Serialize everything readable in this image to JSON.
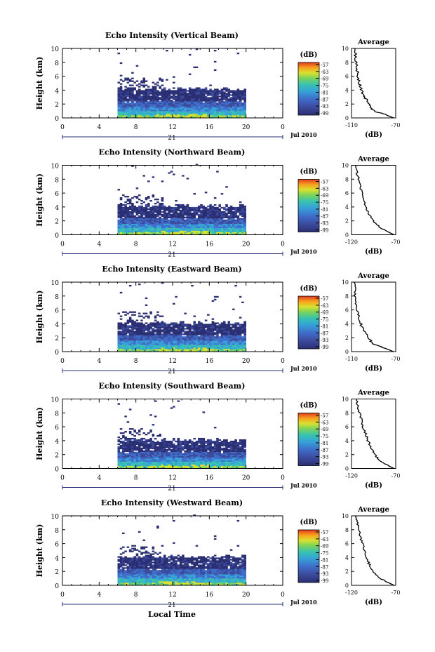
{
  "figure": {
    "x_axis_title": "Local Time",
    "panel_ylabel": "Height (km)",
    "colorbar_label": "(dB)",
    "date_label": "Jul 2010",
    "day_label": "21",
    "avg_title": "Average",
    "avg_xlabel": "(dB)"
  },
  "colors": {
    "palette": [
      "#2b2f73",
      "#3c4a9c",
      "#3f6cc8",
      "#36a0d8",
      "#38c2b0",
      "#7bd35a",
      "#d8e030",
      "#f7a21e",
      "#e23a1a"
    ],
    "line": "#000000"
  },
  "chart_data": [
    {
      "type": "heatmap",
      "title": "Echo Intensity (Vertical Beam)",
      "xlim": [
        0,
        24
      ],
      "ylim": [
        0,
        10
      ],
      "xticks": [
        "0",
        "4",
        "8",
        "12",
        "16",
        "20",
        "0"
      ],
      "yticks": [
        "0",
        "2",
        "4",
        "6",
        "8",
        "10"
      ],
      "colorbar_ticks": [
        "-57",
        "-63",
        "-69",
        "-75",
        "-81",
        "-87",
        "-93",
        "-99"
      ],
      "data_time_range": [
        6,
        20
      ],
      "avg": {
        "xlim": [
          -110,
          -70
        ],
        "xticks": [
          "-110",
          "-70"
        ],
        "yticks": [
          "0",
          "2",
          "4",
          "6",
          "8",
          "10"
        ],
        "profile": [
          [
            -72,
            0
          ],
          [
            -80,
            0.5
          ],
          [
            -90,
            1
          ],
          [
            -93,
            1.6
          ],
          [
            -95,
            2.2
          ],
          [
            -98,
            3
          ],
          [
            -100,
            3.6
          ],
          [
            -102,
            4.4
          ],
          [
            -103,
            5.2
          ],
          [
            -104,
            6
          ],
          [
            -105,
            7
          ],
          [
            -106,
            8
          ],
          [
            -106.5,
            9
          ],
          [
            -107,
            10
          ]
        ]
      }
    },
    {
      "type": "heatmap",
      "title": "Echo Intensity (Northward Beam)",
      "xlim": [
        0,
        24
      ],
      "ylim": [
        0,
        10
      ],
      "xticks": [
        "0",
        "4",
        "8",
        "12",
        "16",
        "20",
        "0"
      ],
      "yticks": [
        "0",
        "2",
        "4",
        "6",
        "8",
        "10"
      ],
      "colorbar_ticks": [
        "-57",
        "-63",
        "-69",
        "-75",
        "-81",
        "-87",
        "-93",
        "-99"
      ],
      "data_time_range": [
        6,
        20
      ],
      "avg": {
        "xlim": [
          -120,
          -70
        ],
        "xticks": [
          "-120",
          "-70"
        ],
        "yticks": [
          "0",
          "2",
          "4",
          "6",
          "8",
          "10"
        ],
        "profile": [
          [
            -72,
            0
          ],
          [
            -80,
            0.5
          ],
          [
            -88,
            1
          ],
          [
            -93,
            1.7
          ],
          [
            -98,
            2.5
          ],
          [
            -101,
            3.2
          ],
          [
            -104,
            4
          ],
          [
            -106,
            5
          ],
          [
            -108,
            6
          ],
          [
            -110,
            7
          ],
          [
            -112,
            8
          ],
          [
            -114,
            9
          ],
          [
            -115,
            10
          ]
        ]
      }
    },
    {
      "type": "heatmap",
      "title": "Echo Intensity (Eastward Beam)",
      "xlim": [
        0,
        24
      ],
      "ylim": [
        0,
        10
      ],
      "xticks": [
        "0",
        "4",
        "8",
        "12",
        "16",
        "20",
        "0"
      ],
      "yticks": [
        "0",
        "2",
        "4",
        "6",
        "8",
        "10"
      ],
      "colorbar_ticks": [
        "-57",
        "-63",
        "-69",
        "-75",
        "-81",
        "-87",
        "-93",
        "-99"
      ],
      "data_time_range": [
        6,
        20
      ],
      "avg": {
        "xlim": [
          -110,
          -70
        ],
        "xticks": [
          "-110",
          "-70"
        ],
        "yticks": [
          "0",
          "2",
          "4",
          "6",
          "8",
          "10"
        ],
        "profile": [
          [
            -72,
            0
          ],
          [
            -80,
            0.5
          ],
          [
            -89,
            1
          ],
          [
            -93,
            1.6
          ],
          [
            -96,
            2.3
          ],
          [
            -99,
            3
          ],
          [
            -101,
            3.8
          ],
          [
            -103,
            4.6
          ],
          [
            -104,
            5.5
          ],
          [
            -105,
            6.5
          ],
          [
            -106,
            7.5
          ],
          [
            -107,
            8.5
          ],
          [
            -107.5,
            10
          ]
        ]
      }
    },
    {
      "type": "heatmap",
      "title": "Echo Intensity (Southward Beam)",
      "xlim": [
        0,
        24
      ],
      "ylim": [
        0,
        10
      ],
      "xticks": [
        "0",
        "4",
        "8",
        "12",
        "16",
        "20",
        "0"
      ],
      "yticks": [
        "0",
        "2",
        "4",
        "6",
        "8",
        "10"
      ],
      "colorbar_ticks": [
        "-57",
        "-63",
        "-69",
        "-75",
        "-81",
        "-87",
        "-93",
        "-99"
      ],
      "data_time_range": [
        6,
        20
      ],
      "avg": {
        "xlim": [
          -120,
          -70
        ],
        "xticks": [
          "-120",
          "-70"
        ],
        "yticks": [
          "0",
          "2",
          "4",
          "6",
          "8",
          "10"
        ],
        "profile": [
          [
            -72,
            0
          ],
          [
            -80,
            0.5
          ],
          [
            -87,
            1
          ],
          [
            -92,
            1.7
          ],
          [
            -96,
            2.5
          ],
          [
            -99,
            3.3
          ],
          [
            -102,
            4.2
          ],
          [
            -104,
            5
          ],
          [
            -107,
            6
          ],
          [
            -109,
            7
          ],
          [
            -111,
            8
          ],
          [
            -113,
            9
          ],
          [
            -114,
            10
          ]
        ]
      }
    },
    {
      "type": "heatmap",
      "title": "Echo Intensity (Westward Beam)",
      "xlim": [
        0,
        24
      ],
      "ylim": [
        0,
        10
      ],
      "xticks": [
        "0",
        "4",
        "8",
        "12",
        "16",
        "20",
        "0"
      ],
      "yticks": [
        "0",
        "2",
        "4",
        "6",
        "8",
        "10"
      ],
      "colorbar_ticks": [
        "-57",
        "-63",
        "-69",
        "-75",
        "-81",
        "-87",
        "-93",
        "-99"
      ],
      "data_time_range": [
        6,
        20
      ],
      "avg": {
        "xlim": [
          -120,
          -70
        ],
        "xticks": [
          "-120",
          "-70"
        ],
        "yticks": [
          "0",
          "2",
          "4",
          "6",
          "8",
          "10"
        ],
        "profile": [
          [
            -72,
            0
          ],
          [
            -80,
            0.5
          ],
          [
            -88,
            1
          ],
          [
            -94,
            1.7
          ],
          [
            -98,
            2.5
          ],
          [
            -101,
            3.3
          ],
          [
            -104,
            4.2
          ],
          [
            -106,
            5.2
          ],
          [
            -108,
            6.2
          ],
          [
            -110,
            7.2
          ],
          [
            -112,
            8.2
          ],
          [
            -114,
            9.2
          ],
          [
            -115,
            10
          ]
        ]
      }
    }
  ]
}
